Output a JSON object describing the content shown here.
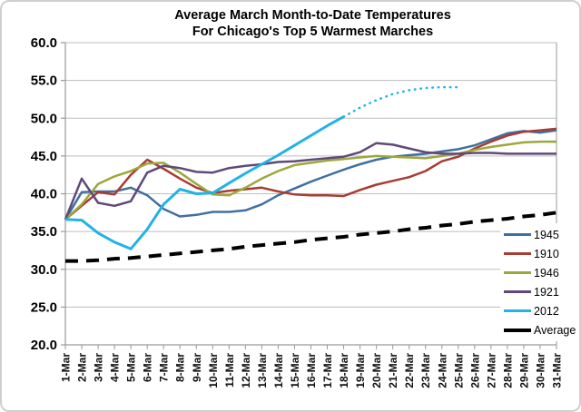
{
  "title": {
    "line1": "Average March Month-to-Date Temperatures",
    "line2": "For Chicago's Top 5 Warmest Marches"
  },
  "chart_data": {
    "type": "line",
    "title": "Average March Month-to-Date Temperatures For Chicago's Top 5 Warmest Marches",
    "xlabel": "",
    "ylabel": "",
    "ylim": [
      20.0,
      60.0
    ],
    "y_tick_step": 5.0,
    "y_tick_labels": [
      "20.0",
      "25.0",
      "30.0",
      "35.0",
      "40.0",
      "45.0",
      "50.0",
      "55.0",
      "60.0"
    ],
    "grid": true,
    "legend_position": "inside-right",
    "axis_color": "#9a9a9a",
    "grid_color": "#bdbdbd",
    "x_labels": [
      "1-Mar",
      "2-Mar",
      "3-Mar",
      "4-Mar",
      "5-Mar",
      "6-Mar",
      "7-Mar",
      "8-Mar",
      "9-Mar",
      "10-Mar",
      "11-Mar",
      "12-Mar",
      "13-Mar",
      "14-Mar",
      "15-Mar",
      "16-Mar",
      "17-Mar",
      "18-Mar",
      "19-Mar",
      "20-Mar",
      "21-Mar",
      "22-Mar",
      "23-Mar",
      "24-Mar",
      "25-Mar",
      "26-Mar",
      "27-Mar",
      "28-Mar",
      "29-Mar",
      "30-Mar",
      "31-Mar"
    ],
    "series": [
      {
        "name": "1945",
        "color": "#4070a0",
        "line_style": "solid",
        "line_width": 2.5,
        "in_legend": true,
        "values": [
          36.6,
          40.2,
          40.3,
          40.3,
          40.8,
          39.8,
          38.0,
          37.0,
          37.2,
          37.6,
          37.6,
          37.8,
          38.6,
          39.8,
          40.7,
          41.6,
          42.4,
          43.2,
          43.9,
          44.5,
          44.9,
          45.1,
          45.3,
          45.6,
          45.9,
          46.4,
          47.2,
          48.0,
          48.3,
          48.1,
          48.4
        ]
      },
      {
        "name": "1910",
        "color": "#a83c32",
        "line_style": "solid",
        "line_width": 2.5,
        "in_legend": true,
        "values": [
          36.6,
          38.4,
          40.2,
          39.9,
          42.5,
          44.5,
          43.3,
          42.0,
          40.8,
          40.1,
          40.4,
          40.6,
          40.8,
          40.3,
          39.9,
          39.8,
          39.8,
          39.7,
          40.5,
          41.2,
          41.7,
          42.2,
          43.0,
          44.3,
          44.9,
          46.0,
          46.9,
          47.7,
          48.2,
          48.4,
          48.6
        ]
      },
      {
        "name": "1946",
        "color": "#9ba83b",
        "line_style": "solid",
        "line_width": 2.5,
        "in_legend": true,
        "values": [
          36.6,
          38.6,
          41.3,
          42.3,
          43.0,
          44.0,
          44.1,
          42.8,
          41.3,
          39.9,
          39.8,
          40.8,
          42.0,
          43.0,
          43.8,
          44.1,
          44.4,
          44.6,
          44.8,
          45.0,
          44.9,
          44.8,
          44.7,
          45.0,
          45.3,
          45.8,
          46.2,
          46.5,
          46.8,
          46.9,
          46.9
        ]
      },
      {
        "name": "1921",
        "color": "#5f497a",
        "line_style": "solid",
        "line_width": 2.5,
        "in_legend": true,
        "values": [
          36.6,
          42.0,
          38.8,
          38.4,
          39.0,
          42.8,
          43.7,
          43.4,
          42.9,
          42.8,
          43.4,
          43.7,
          43.9,
          44.2,
          44.3,
          44.5,
          44.7,
          44.9,
          45.5,
          46.7,
          46.5,
          46.0,
          45.5,
          45.3,
          45.3,
          45.4,
          45.4,
          45.3,
          45.3,
          45.3,
          45.3
        ]
      },
      {
        "name": "2012",
        "color": "#22b2e8",
        "line_style": "solid",
        "line_width": 3,
        "in_legend": true,
        "values": [
          36.6,
          36.5,
          34.8,
          33.6,
          32.7,
          35.3,
          38.6,
          40.6,
          40.0,
          40.1,
          41.4,
          42.7,
          43.9,
          45.1,
          46.4,
          47.7,
          49.0,
          50.2,
          null,
          null,
          null,
          null,
          null,
          null,
          null,
          null,
          null,
          null,
          null,
          null,
          null
        ]
      },
      {
        "name": "2012 projection",
        "color": "#22b2e8",
        "line_style": "dotted",
        "line_width": 2.5,
        "in_legend": false,
        "values": [
          null,
          null,
          null,
          null,
          null,
          null,
          null,
          null,
          null,
          null,
          null,
          null,
          null,
          null,
          null,
          null,
          null,
          50.2,
          51.4,
          52.4,
          53.2,
          53.7,
          54.0,
          54.1,
          54.1,
          null,
          null,
          null,
          null,
          null,
          null
        ]
      },
      {
        "name": "Average",
        "color": "#000000",
        "line_style": "dashed",
        "line_width": 4,
        "in_legend": true,
        "values": [
          31.1,
          31.1,
          31.2,
          31.4,
          31.5,
          31.7,
          31.9,
          32.1,
          32.3,
          32.5,
          32.7,
          33.0,
          33.2,
          33.4,
          33.6,
          33.9,
          34.1,
          34.3,
          34.6,
          34.8,
          35.0,
          35.3,
          35.5,
          35.8,
          36.0,
          36.3,
          36.5,
          36.7,
          37.0,
          37.2,
          37.5
        ]
      }
    ]
  }
}
